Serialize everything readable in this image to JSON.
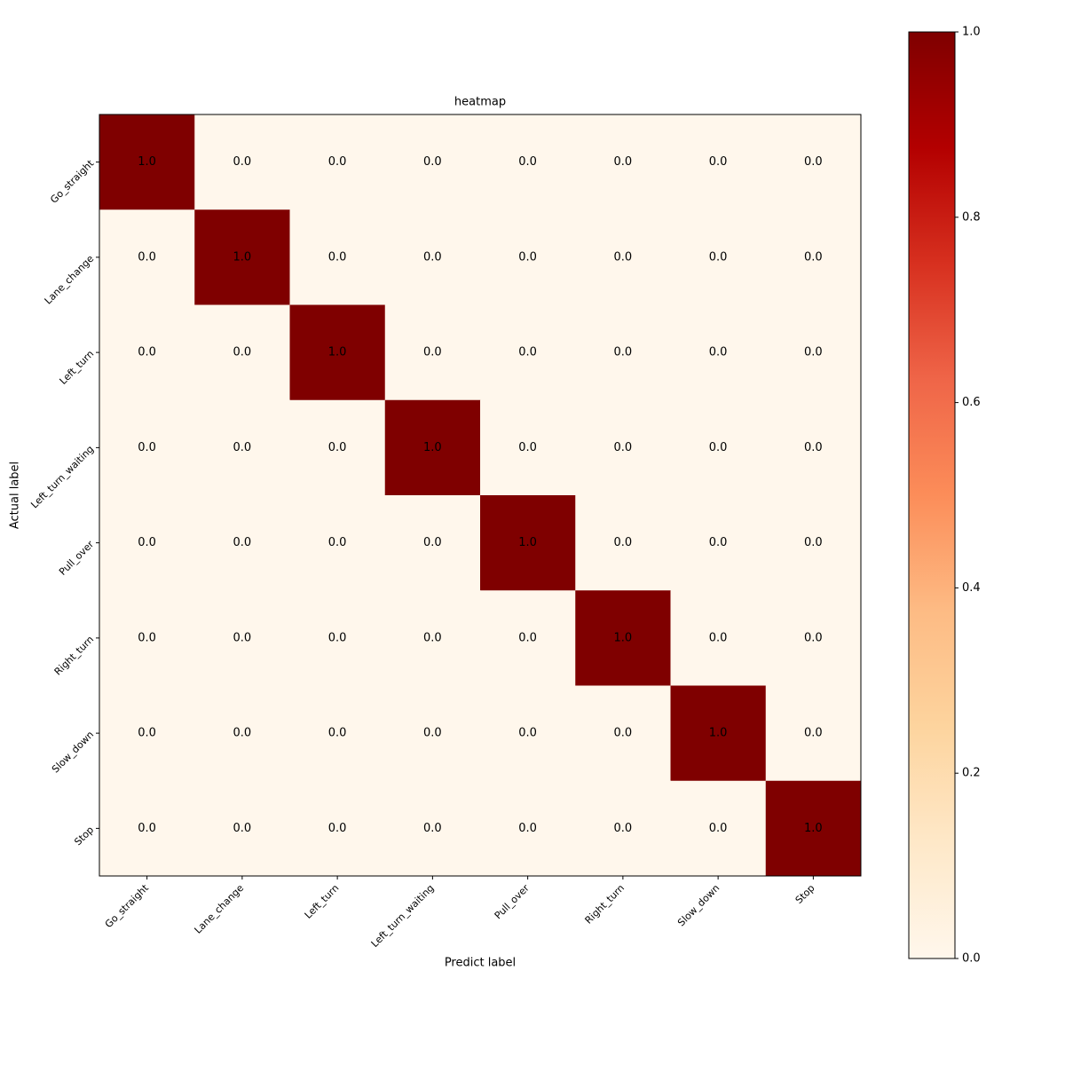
{
  "chart_data": {
    "type": "heatmap",
    "title": "heatmap",
    "xlabel": "Predict label",
    "ylabel": "Actual label",
    "x_categories": [
      "Go_straight",
      "Lane_change",
      "Left_turn",
      "Left_turn_waiting",
      "Pull_over",
      "Right_turn",
      "Slow_down",
      "Stop"
    ],
    "y_categories": [
      "Go_straight",
      "Lane_change",
      "Left_turn",
      "Left_turn_waiting",
      "Pull_over",
      "Right_turn",
      "Slow_down",
      "Stop"
    ],
    "values": [
      [
        1,
        0,
        0,
        0,
        0,
        0,
        0,
        0
      ],
      [
        0,
        1,
        0,
        0,
        0,
        0,
        0,
        0
      ],
      [
        0,
        0,
        1,
        0,
        0,
        0,
        0,
        0
      ],
      [
        0,
        0,
        0,
        1,
        0,
        0,
        0,
        0
      ],
      [
        0,
        0,
        0,
        0,
        1,
        0,
        0,
        0
      ],
      [
        0,
        0,
        0,
        0,
        0,
        1,
        0,
        0
      ],
      [
        0,
        0,
        0,
        0,
        0,
        0,
        1,
        0
      ],
      [
        0,
        0,
        0,
        0,
        0,
        0,
        0,
        1
      ]
    ],
    "value_labels": [
      [
        "1.0",
        "0.0",
        "0.0",
        "0.0",
        "0.0",
        "0.0",
        "0.0",
        "0.0"
      ],
      [
        "0.0",
        "1.0",
        "0.0",
        "0.0",
        "0.0",
        "0.0",
        "0.0",
        "0.0"
      ],
      [
        "0.0",
        "0.0",
        "1.0",
        "0.0",
        "0.0",
        "0.0",
        "0.0",
        "0.0"
      ],
      [
        "0.0",
        "0.0",
        "0.0",
        "1.0",
        "0.0",
        "0.0",
        "0.0",
        "0.0"
      ],
      [
        "0.0",
        "0.0",
        "0.0",
        "0.0",
        "1.0",
        "0.0",
        "0.0",
        "0.0"
      ],
      [
        "0.0",
        "0.0",
        "0.0",
        "0.0",
        "0.0",
        "1.0",
        "0.0",
        "0.0"
      ],
      [
        "0.0",
        "0.0",
        "0.0",
        "0.0",
        "0.0",
        "0.0",
        "1.0",
        "0.0"
      ],
      [
        "0.0",
        "0.0",
        "0.0",
        "0.0",
        "0.0",
        "0.0",
        "0.0",
        "1.0"
      ]
    ],
    "colormap": [
      "#fff7ec",
      "#fee8c8",
      "#fdd49e",
      "#fdbb84",
      "#fc8d59",
      "#ef6548",
      "#d7301f",
      "#b30000",
      "#7f0000"
    ],
    "clim": [
      0,
      1
    ],
    "cticks": [
      {
        "value": 0,
        "label": "0.0"
      },
      {
        "value": 0.2,
        "label": "0.2"
      },
      {
        "value": 0.4,
        "label": "0.4"
      },
      {
        "value": 0.6,
        "label": "0.6"
      },
      {
        "value": 0.8,
        "label": "0.8"
      },
      {
        "value": 1,
        "label": "1.0"
      }
    ]
  }
}
